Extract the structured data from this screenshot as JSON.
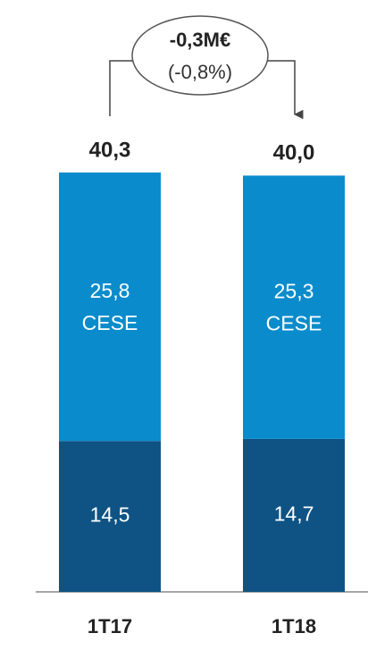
{
  "chart_data": {
    "type": "stacked-bar",
    "categories": [
      "1T17",
      "1T18"
    ],
    "series": [
      {
        "color": "#0f5384",
        "values": [
          14.5,
          14.7
        ],
        "value_labels": [
          "14,5",
          "14,7"
        ]
      },
      {
        "name": "CESE",
        "color": "#0a8ccc",
        "values": [
          25.8,
          25.3
        ],
        "value_labels": [
          "25,8",
          "25,3"
        ]
      }
    ],
    "totals": [
      40.3,
      40.0
    ],
    "total_labels": [
      "40,3",
      "40,0"
    ],
    "annotation": {
      "change": "-0,3M€",
      "percent": "(-0,8%)"
    }
  }
}
